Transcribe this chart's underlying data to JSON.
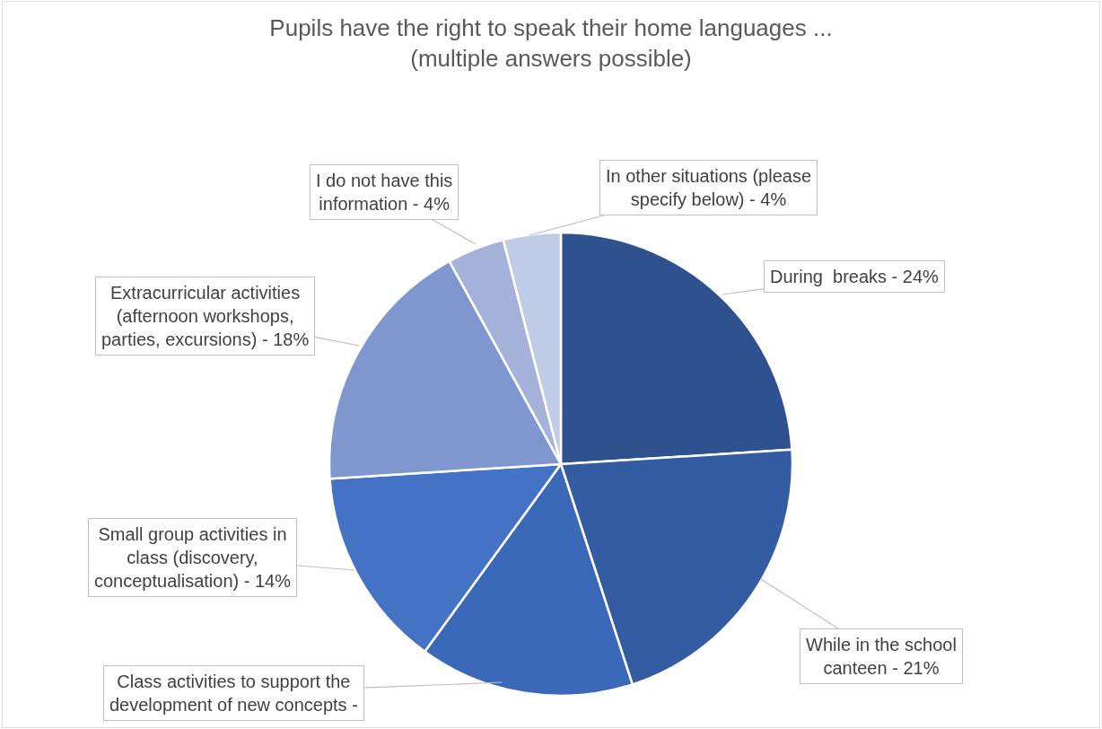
{
  "chart_data": {
    "type": "pie",
    "title": "Pupils have the right to speak their home languages ...",
    "subtitle": "(multiple answers possible)",
    "categories": [
      "During  breaks - 24%",
      "While in the school canteen - 21%",
      "Class activities to support the development of new concepts -",
      "Small group activities in class (discovery, conceptualisation) - 14%",
      "Extracurricular activities (afternoon workshops, parties, excursions) - 18%",
      "I do not have this information - 4%",
      "In other situations (please specify below) - 4%"
    ],
    "values": [
      24,
      21,
      15,
      14,
      18,
      4,
      4
    ],
    "colors": [
      "#2f528f",
      "#345ca2",
      "#3b68b8",
      "#4472c4",
      "#7f96cf",
      "#a5b2da",
      "#c0cbe6"
    ],
    "legend": false
  }
}
